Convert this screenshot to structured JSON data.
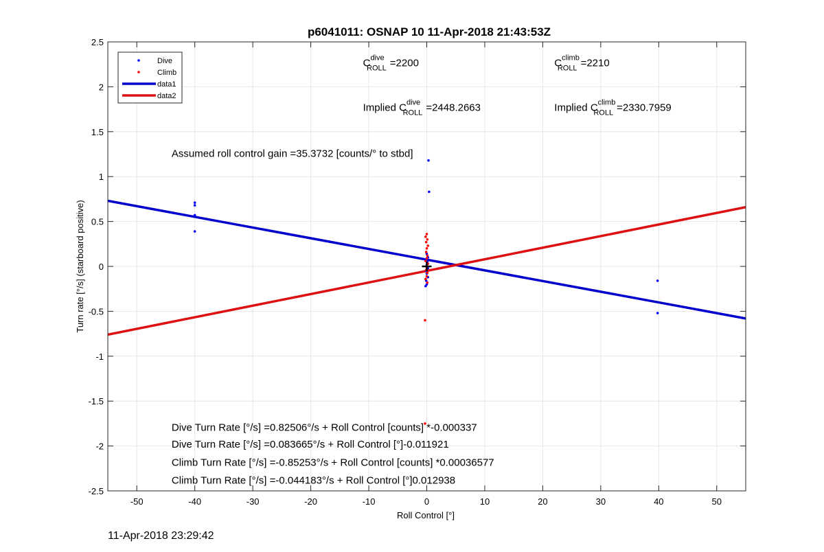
{
  "chart_data": {
    "type": "scatter",
    "title": "p6041011: OSNAP 10 11-Apr-2018 21:43:53Z",
    "xlabel": "Roll Control [°]",
    "ylabel": "Turn rate [°/s] (starboard positive)",
    "xlim": [
      -55,
      55
    ],
    "ylim": [
      -2.5,
      2.5
    ],
    "xticks": [
      -50,
      -40,
      -30,
      -20,
      -10,
      0,
      10,
      20,
      30,
      40,
      50
    ],
    "yticks": [
      2.5,
      2,
      1.5,
      1,
      0.5,
      0,
      -0.5,
      -1,
      -1.5,
      -2,
      -2.5
    ],
    "xtick_labels": [
      "-50",
      "-40",
      "-30",
      "-20",
      "-10",
      "0",
      "10",
      "20",
      "30",
      "40",
      "50"
    ],
    "ytick_labels": [
      "2.5",
      "2",
      "1.5",
      "1",
      "0.5",
      "0",
      "-0.5",
      "-1",
      "-1.5",
      "-2",
      "-2.5"
    ],
    "grid": true,
    "legend_position": "top-left",
    "legend": [
      "Dive",
      "Climb",
      "data1",
      "data2"
    ],
    "series": [
      {
        "name": "Dive",
        "kind": "points",
        "color": "#0000ff",
        "points": [
          [
            -40,
            0.71
          ],
          [
            -40,
            0.68
          ],
          [
            -40,
            0.57
          ],
          [
            -40,
            0.39
          ],
          [
            0.3,
            1.18
          ],
          [
            0.4,
            0.83
          ],
          [
            0,
            0.14
          ],
          [
            0.2,
            0.1
          ],
          [
            -0.2,
            0.08
          ],
          [
            0.1,
            0.05
          ],
          [
            0,
            0.02
          ],
          [
            0.2,
            -0.02
          ],
          [
            -0.1,
            -0.05
          ],
          [
            0,
            -0.08
          ],
          [
            0.2,
            -0.12
          ],
          [
            -0.1,
            -0.16
          ],
          [
            0,
            -0.2
          ],
          [
            -0.2,
            -0.22
          ],
          [
            39.8,
            -0.16
          ],
          [
            39.8,
            -0.52
          ]
        ]
      },
      {
        "name": "Climb",
        "kind": "points",
        "color": "#ff0000",
        "points": [
          [
            0,
            0.36
          ],
          [
            -0.2,
            0.33
          ],
          [
            0.1,
            0.3
          ],
          [
            -0.1,
            0.27
          ],
          [
            0.2,
            0.23
          ],
          [
            0,
            0.2
          ],
          [
            -0.1,
            0.16
          ],
          [
            0.1,
            0.12
          ],
          [
            0,
            0.09
          ],
          [
            -0.2,
            0.06
          ],
          [
            0.2,
            0.03
          ],
          [
            0,
            -0.01
          ],
          [
            -0.1,
            -0.04
          ],
          [
            0.1,
            -0.07
          ],
          [
            0,
            -0.11
          ],
          [
            -0.2,
            -0.14
          ],
          [
            0.1,
            -0.18
          ],
          [
            -0.3,
            -0.6
          ],
          [
            -0.3,
            -1.75
          ]
        ]
      },
      {
        "name": "data1",
        "kind": "line",
        "color": "#0000cc",
        "points": [
          [
            -55,
            0.73
          ],
          [
            55,
            -0.58
          ]
        ]
      },
      {
        "name": "data2",
        "kind": "line",
        "color": "#dd1111",
        "points": [
          [
            -55,
            -0.76
          ],
          [
            55,
            0.66
          ]
        ]
      }
    ],
    "origin_marker": [
      0,
      0
    ],
    "annotations": {
      "c_roll_dive": {
        "base": "C",
        "sup": "dive",
        "sub": "ROLL",
        "value": "=2200",
        "x": -11,
        "y": 2.23
      },
      "c_roll_climb": {
        "base": "C",
        "sup": "climb",
        "sub": "ROLL",
        "value": "=2210",
        "x": 22,
        "y": 2.23
      },
      "implied_dive": {
        "prefix": "Implied ",
        "base": "C",
        "sup": "dive",
        "sub": "ROLL",
        "value": "=2448.2663",
        "x": -11,
        "y": 1.73
      },
      "implied_climb": {
        "prefix": "Implied ",
        "base": "C",
        "sup": "climb",
        "sub": "ROLL",
        "value": "=2330.7959",
        "x": 22,
        "y": 1.73
      },
      "gain": {
        "text": "Assumed roll control gain =35.3732 [counts/° to stbd]",
        "x": -44,
        "y": 1.22
      },
      "eq1": {
        "text": "Dive Turn Rate [°/s] =0.82506°/s + Roll Control [counts] *-0.000337",
        "x": -44,
        "y": -1.83
      },
      "eq2": {
        "text": "Dive Turn Rate [°/s] =0.083665°/s + Roll Control [°]-0.011921",
        "x": -44,
        "y": -2.02
      },
      "eq3": {
        "text": "Climb Turn Rate [°/s] =-0.85253°/s + Roll Control [counts] *0.00036577",
        "x": -44,
        "y": -2.22
      },
      "eq4": {
        "text": "Climb Turn Rate [°/s] =-0.044183°/s + Roll Control [°]0.012938",
        "x": -44,
        "y": -2.42
      }
    }
  },
  "footer": {
    "timestamp": "11-Apr-2018 23:29:42"
  }
}
